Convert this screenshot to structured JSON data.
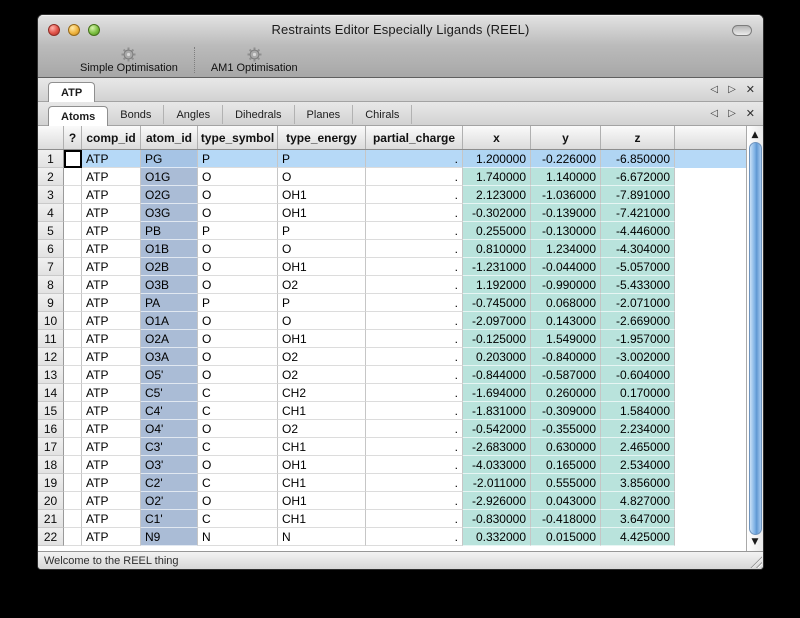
{
  "window": {
    "title": "Restraints Editor Especially Ligands (REEL)"
  },
  "toolbar": {
    "items": [
      {
        "label": "Simple Optimisation",
        "icon": "gear-icon"
      },
      {
        "label": "AM1 Optimisation",
        "icon": "gear-icon"
      }
    ]
  },
  "doc_tabs": {
    "tabs": [
      "ATP"
    ],
    "active": "ATP"
  },
  "section_tabs": {
    "tabs": [
      "Atoms",
      "Bonds",
      "Angles",
      "Dihedrals",
      "Planes",
      "Chirals"
    ],
    "active": "Atoms"
  },
  "tab_controls": {
    "prev": "◁",
    "next": "▷",
    "close": "✕"
  },
  "scrollbar": {
    "up": "▲",
    "down": "▼"
  },
  "table": {
    "columns": [
      "?",
      "comp_id",
      "atom_id",
      "type_symbol",
      "type_energy",
      "partial_charge",
      "x",
      "y",
      "z"
    ],
    "focused_cell": {
      "row": 1,
      "column": "?",
      "value": ""
    },
    "rows": [
      {
        "num": 1,
        "comp_id": "ATP",
        "atom_id": "PG",
        "type_symbol": "P",
        "type_energy": "P",
        "partial_charge": ".",
        "x": "1.200000",
        "y": "-0.226000",
        "z": "-6.850000",
        "selected": true
      },
      {
        "num": 2,
        "comp_id": "ATP",
        "atom_id": "O1G",
        "type_symbol": "O",
        "type_energy": "O",
        "partial_charge": ".",
        "x": "1.740000",
        "y": "1.140000",
        "z": "-6.672000"
      },
      {
        "num": 3,
        "comp_id": "ATP",
        "atom_id": "O2G",
        "type_symbol": "O",
        "type_energy": "OH1",
        "partial_charge": ".",
        "x": "2.123000",
        "y": "-1.036000",
        "z": "-7.891000"
      },
      {
        "num": 4,
        "comp_id": "ATP",
        "atom_id": "O3G",
        "type_symbol": "O",
        "type_energy": "OH1",
        "partial_charge": ".",
        "x": "-0.302000",
        "y": "-0.139000",
        "z": "-7.421000"
      },
      {
        "num": 5,
        "comp_id": "ATP",
        "atom_id": "PB",
        "type_symbol": "P",
        "type_energy": "P",
        "partial_charge": ".",
        "x": "0.255000",
        "y": "-0.130000",
        "z": "-4.446000"
      },
      {
        "num": 6,
        "comp_id": "ATP",
        "atom_id": "O1B",
        "type_symbol": "O",
        "type_energy": "O",
        "partial_charge": ".",
        "x": "0.810000",
        "y": "1.234000",
        "z": "-4.304000"
      },
      {
        "num": 7,
        "comp_id": "ATP",
        "atom_id": "O2B",
        "type_symbol": "O",
        "type_energy": "OH1",
        "partial_charge": ".",
        "x": "-1.231000",
        "y": "-0.044000",
        "z": "-5.057000"
      },
      {
        "num": 8,
        "comp_id": "ATP",
        "atom_id": "O3B",
        "type_symbol": "O",
        "type_energy": "O2",
        "partial_charge": ".",
        "x": "1.192000",
        "y": "-0.990000",
        "z": "-5.433000"
      },
      {
        "num": 9,
        "comp_id": "ATP",
        "atom_id": "PA",
        "type_symbol": "P",
        "type_energy": "P",
        "partial_charge": ".",
        "x": "-0.745000",
        "y": "0.068000",
        "z": "-2.071000"
      },
      {
        "num": 10,
        "comp_id": "ATP",
        "atom_id": "O1A",
        "type_symbol": "O",
        "type_energy": "O",
        "partial_charge": ".",
        "x": "-2.097000",
        "y": "0.143000",
        "z": "-2.669000"
      },
      {
        "num": 11,
        "comp_id": "ATP",
        "atom_id": "O2A",
        "type_symbol": "O",
        "type_energy": "OH1",
        "partial_charge": ".",
        "x": "-0.125000",
        "y": "1.549000",
        "z": "-1.957000"
      },
      {
        "num": 12,
        "comp_id": "ATP",
        "atom_id": "O3A",
        "type_symbol": "O",
        "type_energy": "O2",
        "partial_charge": ".",
        "x": "0.203000",
        "y": "-0.840000",
        "z": "-3.002000"
      },
      {
        "num": 13,
        "comp_id": "ATP",
        "atom_id": "O5'",
        "type_symbol": "O",
        "type_energy": "O2",
        "partial_charge": ".",
        "x": "-0.844000",
        "y": "-0.587000",
        "z": "-0.604000"
      },
      {
        "num": 14,
        "comp_id": "ATP",
        "atom_id": "C5'",
        "type_symbol": "C",
        "type_energy": "CH2",
        "partial_charge": ".",
        "x": "-1.694000",
        "y": "0.260000",
        "z": "0.170000"
      },
      {
        "num": 15,
        "comp_id": "ATP",
        "atom_id": "C4'",
        "type_symbol": "C",
        "type_energy": "CH1",
        "partial_charge": ".",
        "x": "-1.831000",
        "y": "-0.309000",
        "z": "1.584000"
      },
      {
        "num": 16,
        "comp_id": "ATP",
        "atom_id": "O4'",
        "type_symbol": "O",
        "type_energy": "O2",
        "partial_charge": ".",
        "x": "-0.542000",
        "y": "-0.355000",
        "z": "2.234000"
      },
      {
        "num": 17,
        "comp_id": "ATP",
        "atom_id": "C3'",
        "type_symbol": "C",
        "type_energy": "CH1",
        "partial_charge": ".",
        "x": "-2.683000",
        "y": "0.630000",
        "z": "2.465000"
      },
      {
        "num": 18,
        "comp_id": "ATP",
        "atom_id": "O3'",
        "type_symbol": "O",
        "type_energy": "OH1",
        "partial_charge": ".",
        "x": "-4.033000",
        "y": "0.165000",
        "z": "2.534000"
      },
      {
        "num": 19,
        "comp_id": "ATP",
        "atom_id": "C2'",
        "type_symbol": "C",
        "type_energy": "CH1",
        "partial_charge": ".",
        "x": "-2.011000",
        "y": "0.555000",
        "z": "3.856000"
      },
      {
        "num": 20,
        "comp_id": "ATP",
        "atom_id": "O2'",
        "type_symbol": "O",
        "type_energy": "OH1",
        "partial_charge": ".",
        "x": "-2.926000",
        "y": "0.043000",
        "z": "4.827000"
      },
      {
        "num": 21,
        "comp_id": "ATP",
        "atom_id": "C1'",
        "type_symbol": "C",
        "type_energy": "CH1",
        "partial_charge": ".",
        "x": "-0.830000",
        "y": "-0.418000",
        "z": "3.647000"
      },
      {
        "num": 22,
        "comp_id": "ATP",
        "atom_id": "N9",
        "type_symbol": "N",
        "type_energy": "N",
        "partial_charge": ".",
        "x": "0.332000",
        "y": "0.015000",
        "z": "4.425000"
      }
    ]
  },
  "status_bar": {
    "text": "Welcome to the REEL thing"
  },
  "colors": {
    "selection_row": "#b6d9f7",
    "selection_atom_id": "#a6c4e5",
    "selection_xyz": "#b0d5f3",
    "atom_id_column": "#aabcd6",
    "xyz_column": "#b9e3dc",
    "scrollbar_thumb": "#6ea5dd"
  }
}
